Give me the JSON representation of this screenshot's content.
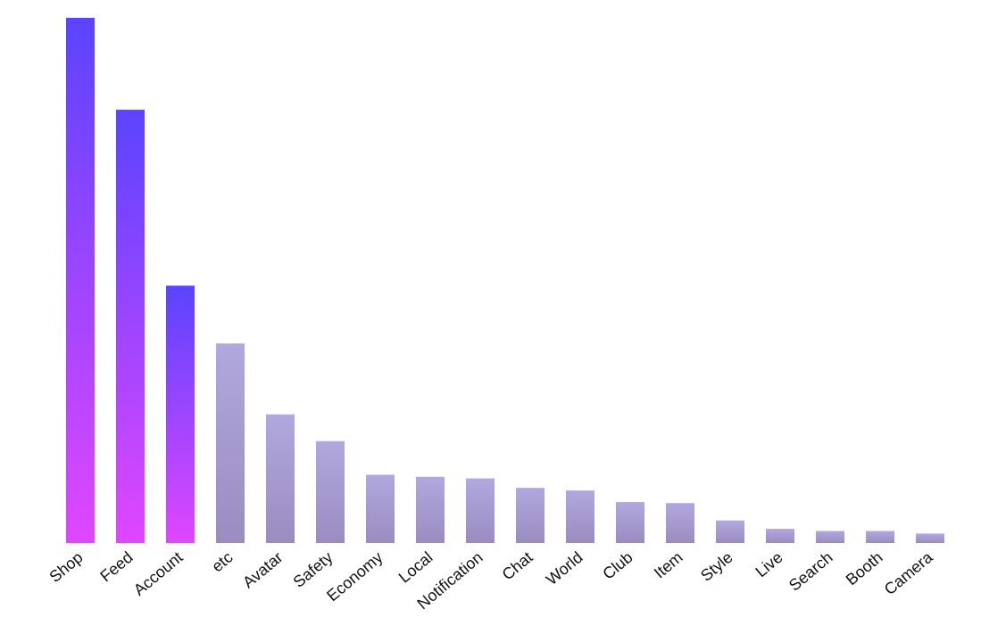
{
  "chart_data": {
    "type": "bar",
    "title": "",
    "xlabel": "",
    "ylabel": "",
    "ylim": [
      0,
      100
    ],
    "grid": false,
    "categories": [
      "Shop",
      "Feed",
      "Account",
      "etc",
      "Avatar",
      "Safety",
      "Economy",
      "Local",
      "Notification",
      "Chat",
      "World",
      "Club",
      "Item",
      "Style",
      "Live",
      "Search",
      "Booth",
      "Camera"
    ],
    "values": [
      100,
      82.5,
      49,
      38,
      24.5,
      19.4,
      13,
      12.6,
      12.3,
      10.5,
      10,
      7.8,
      7.6,
      4.3,
      2.7,
      2.3,
      2.3,
      1.8
    ],
    "highlight_count": 3,
    "colors": {
      "highlight_top": "#5b44ff",
      "highlight_bottom": "#e046ff",
      "normal_top": "#b1a8df",
      "normal_bottom": "#9a8cc0"
    }
  }
}
